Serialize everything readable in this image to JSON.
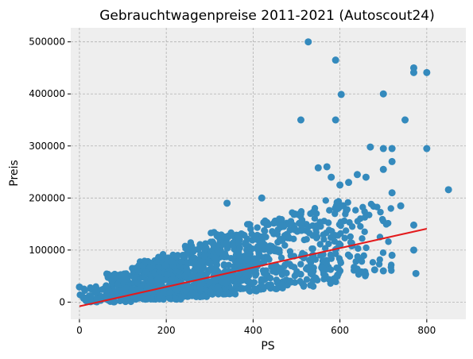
{
  "chart_data": {
    "type": "scatter",
    "title": "Gebrauchtwagenpreise 2011-2021 (Autoscout24)",
    "xlabel": "PS",
    "ylabel": "Preis",
    "xlim": [
      -20,
      890
    ],
    "ylim": [
      -33000,
      527000
    ],
    "x_ticks": [
      0,
      200,
      400,
      600,
      800
    ],
    "y_ticks": [
      0,
      100000,
      200000,
      300000,
      400000,
      500000
    ],
    "x_tick_labels": [
      "0",
      "200",
      "400",
      "600",
      "800"
    ],
    "y_tick_labels": [
      "0",
      "100000",
      "200000",
      "300000",
      "400000",
      "500000"
    ],
    "grid": true,
    "legend": "none",
    "colors": {
      "scatter": "#348abd",
      "trend": "#e31a1c",
      "plot_background": "#eeeeee",
      "grid": "#b2b2b2"
    },
    "outliers": [
      {
        "x": 527,
        "y": 500000
      },
      {
        "x": 590,
        "y": 465000
      },
      {
        "x": 603,
        "y": 399000
      },
      {
        "x": 700,
        "y": 400000
      },
      {
        "x": 770,
        "y": 450000
      },
      {
        "x": 770,
        "y": 441000
      },
      {
        "x": 800,
        "y": 441000
      },
      {
        "x": 510,
        "y": 350000
      },
      {
        "x": 590,
        "y": 350000
      },
      {
        "x": 750,
        "y": 350000
      },
      {
        "x": 800,
        "y": 295000
      },
      {
        "x": 670,
        "y": 298000
      },
      {
        "x": 700,
        "y": 295000
      },
      {
        "x": 720,
        "y": 295000
      },
      {
        "x": 720,
        "y": 270000
      },
      {
        "x": 850,
        "y": 216000
      },
      {
        "x": 340,
        "y": 190000
      },
      {
        "x": 420,
        "y": 200000
      },
      {
        "x": 550,
        "y": 258000
      },
      {
        "x": 570,
        "y": 260000
      },
      {
        "x": 580,
        "y": 240000
      },
      {
        "x": 600,
        "y": 225000
      },
      {
        "x": 620,
        "y": 230000
      },
      {
        "x": 640,
        "y": 245000
      },
      {
        "x": 660,
        "y": 240000
      },
      {
        "x": 700,
        "y": 255000
      },
      {
        "x": 720,
        "y": 210000
      },
      {
        "x": 740,
        "y": 185000
      },
      {
        "x": 770,
        "y": 148000
      },
      {
        "x": 770,
        "y": 100000
      },
      {
        "x": 775,
        "y": 55000
      },
      {
        "x": 700,
        "y": 60000
      },
      {
        "x": 720,
        "y": 90000
      },
      {
        "x": 650,
        "y": 58000
      },
      {
        "x": 680,
        "y": 62000
      },
      {
        "x": 600,
        "y": 60000
      },
      {
        "x": 0,
        "y": 29000
      }
    ],
    "cluster": [
      {
        "x_min": 0,
        "x_max": 60,
        "y_min": 0,
        "y_max": 30000,
        "n": 40
      },
      {
        "x_min": 60,
        "x_max": 120,
        "y_min": 0,
        "y_max": 55000,
        "n": 120
      },
      {
        "x_min": 120,
        "x_max": 180,
        "y_min": 5000,
        "y_max": 80000,
        "n": 180
      },
      {
        "x_min": 180,
        "x_max": 240,
        "y_min": 5000,
        "y_max": 95000,
        "n": 200
      },
      {
        "x_min": 240,
        "x_max": 300,
        "y_min": 10000,
        "y_max": 115000,
        "n": 200
      },
      {
        "x_min": 300,
        "x_max": 360,
        "y_min": 15000,
        "y_max": 135000,
        "n": 170
      },
      {
        "x_min": 360,
        "x_max": 420,
        "y_min": 20000,
        "y_max": 150000,
        "n": 130
      },
      {
        "x_min": 420,
        "x_max": 480,
        "y_min": 25000,
        "y_max": 160000,
        "n": 110
      },
      {
        "x_min": 480,
        "x_max": 540,
        "y_min": 30000,
        "y_max": 175000,
        "n": 80
      },
      {
        "x_min": 540,
        "x_max": 600,
        "y_min": 35000,
        "y_max": 200000,
        "n": 80
      },
      {
        "x_min": 600,
        "x_max": 660,
        "y_min": 50000,
        "y_max": 200000,
        "n": 50
      },
      {
        "x_min": 660,
        "x_max": 720,
        "y_min": 60000,
        "y_max": 190000,
        "n": 20
      }
    ],
    "trend_line": {
      "x": [
        0,
        800
      ],
      "y": [
        -8000,
        141000
      ]
    }
  }
}
